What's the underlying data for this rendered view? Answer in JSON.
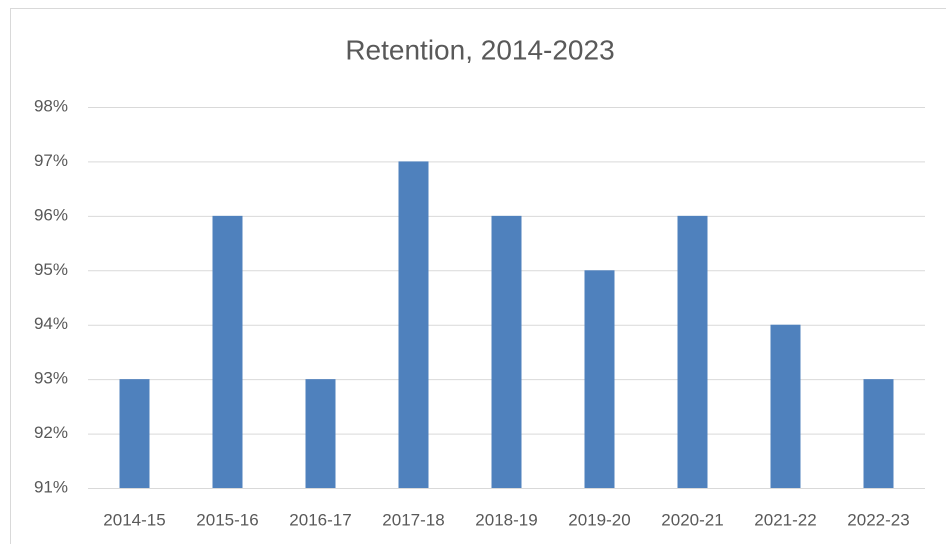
{
  "chart_data": {
    "type": "bar",
    "title": "Retention, 2014-2023",
    "categories": [
      "2014-15",
      "2015-16",
      "2016-17",
      "2017-18",
      "2018-19",
      "2019-20",
      "2020-21",
      "2021-22",
      "2022-23"
    ],
    "values": [
      93,
      96,
      93,
      97,
      96,
      95,
      96,
      94,
      93
    ],
    "color": "#4f81bd",
    "ylim": [
      91,
      98
    ],
    "yticks": [
      {
        "value": 91,
        "label": "91%"
      },
      {
        "value": 92,
        "label": "92%"
      },
      {
        "value": 93,
        "label": "93%"
      },
      {
        "value": 94,
        "label": "94%"
      },
      {
        "value": 95,
        "label": "95%"
      },
      {
        "value": 96,
        "label": "96%"
      },
      {
        "value": 97,
        "label": "97%"
      },
      {
        "value": 98,
        "label": "98%"
      }
    ],
    "grid": true
  }
}
